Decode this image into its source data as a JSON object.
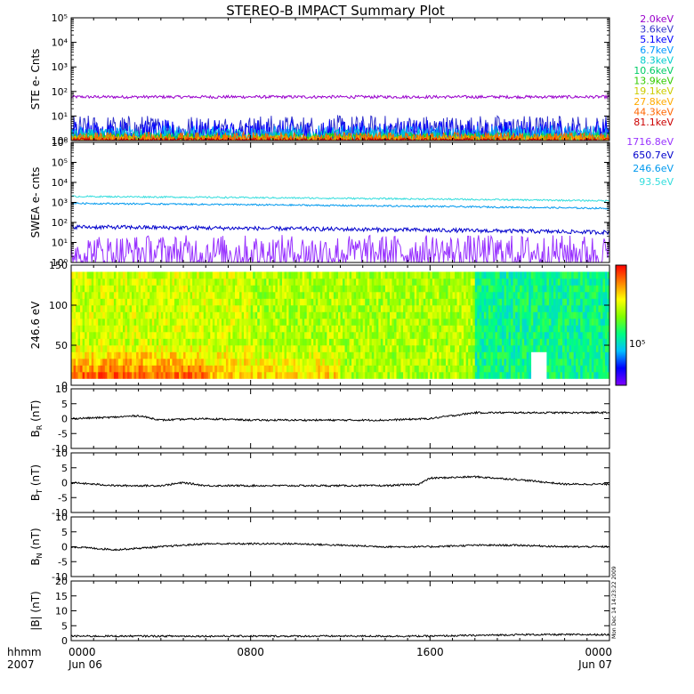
{
  "title": "STEREO-B IMPACT Summary Plot",
  "time_axis": {
    "row1_label": "hhmm",
    "row2_label": "2007",
    "ticks": [
      {
        "hour": 0,
        "time": "0000",
        "date": "Jun 06"
      },
      {
        "hour": 8,
        "time": "0800",
        "date": ""
      },
      {
        "hour": 16,
        "time": "1600",
        "date": ""
      },
      {
        "hour": 24,
        "time": "0000",
        "date": "Jun 07"
      }
    ]
  },
  "timestamp": "Mon Dec 14 14:23:22 2009",
  "colorbar": {
    "tick_label": "10⁵",
    "colors": [
      "#8000ff",
      "#0000ff",
      "#00c0ff",
      "#00ff80",
      "#80ff00",
      "#ffff00",
      "#ff8000",
      "#ff0000"
    ]
  },
  "chart_data": [
    {
      "type": "line",
      "id": "ste",
      "ylabel": "STE e- Cnts",
      "yscale": "log",
      "ylim": [
        1,
        100000
      ],
      "yticks": [
        "10⁰",
        "10¹",
        "10²",
        "10³",
        "10⁴",
        "10⁵"
      ],
      "series": [
        {
          "name": "2.0keV",
          "color": "#9900cc",
          "level": 60,
          "noise": 0.03
        },
        {
          "name": "3.6keV",
          "color": "#3333cc",
          "level": 2.2,
          "noise": 0.35
        },
        {
          "name": "5.1keV",
          "color": "#0000ff",
          "level": 1.7,
          "noise": 0.3
        },
        {
          "name": "6.7keV",
          "color": "#0099ff",
          "level": 1.3,
          "noise": 0.25
        },
        {
          "name": "8.3keV",
          "color": "#00cccc",
          "level": 1.2,
          "noise": 0.2
        },
        {
          "name": "10.6keV",
          "color": "#00cc66",
          "level": 1.1,
          "noise": 0.15
        },
        {
          "name": "13.9keV",
          "color": "#33cc00",
          "level": 1.1,
          "noise": 0.12
        },
        {
          "name": "19.1keV",
          "color": "#cccc00",
          "level": 1.05,
          "noise": 0.1
        },
        {
          "name": "27.8keV",
          "color": "#ffaa00",
          "level": 1.05,
          "noise": 0.1
        },
        {
          "name": "44.3keV",
          "color": "#ff6600",
          "level": 1.1,
          "noise": 0.15
        },
        {
          "name": "81.1keV",
          "color": "#cc0000",
          "level": 1.02,
          "noise": 0.05
        }
      ]
    },
    {
      "type": "line",
      "id": "swea",
      "ylabel": "SWEA e- cnts",
      "yscale": "log",
      "ylim": [
        1,
        1000000
      ],
      "yticks": [
        "10⁰",
        "10¹",
        "10²",
        "10³",
        "10⁴",
        "10⁵",
        "10⁶"
      ],
      "series": [
        {
          "name": "1716.8eV",
          "color": "#9933ff",
          "level": 3,
          "noise": 0.45
        },
        {
          "name": "650.7eV",
          "color": "#0000cc",
          "level": 60,
          "end_level": 32,
          "noise": 0.05
        },
        {
          "name": "246.6eV",
          "color": "#0099ee",
          "level": 900,
          "end_level": 500,
          "noise": 0.02
        },
        {
          "name": "93.5eV",
          "color": "#33dddd",
          "level": 2000,
          "end_level": 1200,
          "noise": 0.02
        }
      ]
    },
    {
      "type": "heatmap",
      "id": "pad",
      "ylabel": "246.6 eV",
      "ylim": [
        0,
        180
      ],
      "yticks": [
        "0",
        "50",
        "100",
        "150"
      ],
      "data_ylim": [
        10,
        170
      ]
    },
    {
      "type": "line",
      "id": "br",
      "ylabel": "B",
      "ylabel_sub": "R",
      "ylabel_unit": " (nT)",
      "ylim": [
        -10,
        10
      ],
      "yticks": [
        "-10",
        "-5",
        "0",
        "5",
        "10"
      ],
      "x": [
        0,
        2,
        3,
        4,
        6,
        8,
        10,
        12,
        14,
        16,
        18,
        20,
        22,
        24
      ],
      "values": [
        0,
        0.5,
        1,
        -0.5,
        0,
        -0.5,
        -0.5,
        -0.5,
        -0.5,
        0,
        2,
        2,
        2,
        2
      ]
    },
    {
      "type": "line",
      "id": "bt",
      "ylabel": "B",
      "ylabel_sub": "T",
      "ylabel_unit": " (nT)",
      "ylim": [
        -10,
        10
      ],
      "yticks": [
        "-10",
        "-5",
        "0",
        "5",
        "10"
      ],
      "x": [
        0,
        2,
        4,
        5,
        6,
        8,
        10,
        12,
        14,
        15.5,
        16,
        18,
        20,
        22,
        24
      ],
      "values": [
        0,
        -1,
        -1,
        0,
        -1,
        -1,
        -1,
        -1,
        -1,
        -0.5,
        1.5,
        2,
        1,
        -0.5,
        -0.5
      ]
    },
    {
      "type": "line",
      "id": "bn",
      "ylabel": "B",
      "ylabel_sub": "N",
      "ylabel_unit": " (nT)",
      "ylim": [
        -10,
        10
      ],
      "yticks": [
        "-10",
        "-5",
        "0",
        "5",
        "10"
      ],
      "x": [
        0,
        2,
        4,
        6,
        8,
        10,
        12,
        14,
        16,
        18,
        20,
        22,
        24
      ],
      "values": [
        0,
        -1,
        0,
        1,
        1,
        1,
        0.5,
        0,
        0,
        0.5,
        0.5,
        0,
        0
      ]
    },
    {
      "type": "line",
      "id": "bmag",
      "ylabel": "|B| (nT)",
      "ylim": [
        0,
        20
      ],
      "yticks": [
        "0",
        "5",
        "10",
        "15",
        "20"
      ],
      "x": [
        0,
        4,
        8,
        12,
        16,
        20,
        24
      ],
      "values": [
        1.5,
        1.5,
        1.5,
        1.5,
        1.5,
        2,
        2
      ]
    }
  ]
}
